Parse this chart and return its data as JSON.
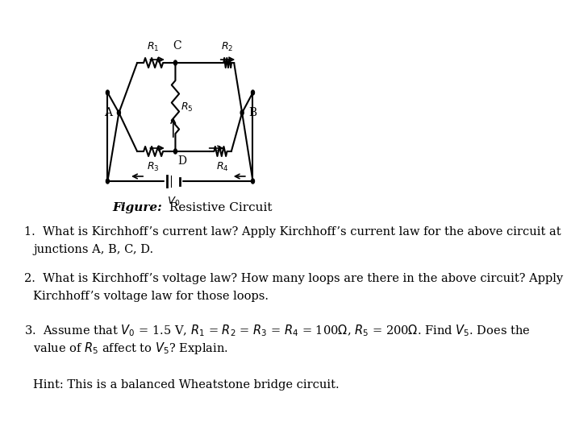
{
  "background_color": "#ffffff",
  "figure_caption": [
    "Figure:",
    " Resistive Circuit"
  ],
  "q1_line1": "1.  What is Kirchhoff’s current law? Apply Kirchhoff’s current law for the above circuit at",
  "q1_line2": "    junctions A, B, C, D.",
  "q2_line1": "2.  What is Kirchhoff’s voltage law? How many loops are there in the above circuit? Apply",
  "q2_line2": "    Kirchhoff’s voltage law for those loops.",
  "q3_line1": "3.  Assume that $V_0$ = 1.5 V, $R_1$ = $R_2$ = $R_3$ = $R_4$ = 100Ω, $R_5$ = 200Ω. Find $V_5$. Does the",
  "q3_line2": "    value of $R_5$ affect to $V_5$? Explain.",
  "hint": "    Hint: This is a balanced Wheatstone bridge circuit.",
  "text_color": "#000000",
  "fontsize_main": 11,
  "fontsize_caption": 11
}
